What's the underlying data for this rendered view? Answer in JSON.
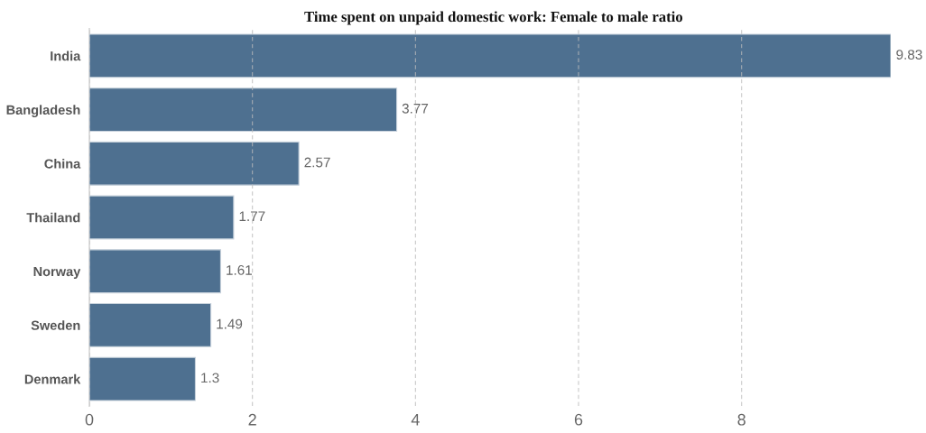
{
  "chart_data": {
    "type": "bar",
    "orientation": "horizontal",
    "title": "Time spent on unpaid domestic work: Female to male ratio",
    "categories": [
      "India",
      "Bangladesh",
      "China",
      "Thailand",
      "Norway",
      "Sweden",
      "Denmark"
    ],
    "values": [
      9.83,
      3.77,
      2.57,
      1.77,
      1.61,
      1.49,
      1.3
    ],
    "color": "#4e7090",
    "xlim": [
      0,
      9.83
    ],
    "xticks": [
      0,
      2,
      4,
      6,
      8
    ],
    "grid": "x",
    "data_labels": true
  }
}
